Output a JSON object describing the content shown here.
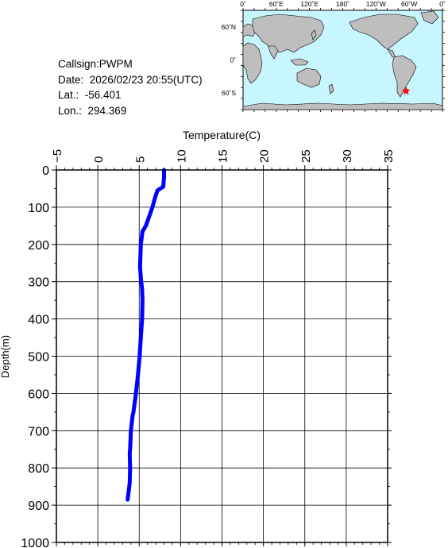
{
  "station": {
    "callsign": "Callsign:PWPM",
    "date": "Date:  2026/02/23 20:55(UTC)",
    "lat": "Lat.:  -56.401",
    "lon": "Lon.:  294.369"
  },
  "map": {
    "lon_labels": [
      "0˚",
      "60˚E",
      "120˚E",
      "180˚",
      "120˚W",
      "60˚W",
      "0˚"
    ],
    "lat_labels": [
      "60˚N",
      "0˚",
      "60˚S"
    ],
    "ocean_color": "#c8f6ff",
    "land_color": "#bebebe",
    "marker": {
      "lat": -56.401,
      "lon": 294.369,
      "color": "#ff0000",
      "icon": "star-icon"
    }
  },
  "chart_data": {
    "type": "line",
    "xlabel": "Temperature(C)",
    "ylabel": "Depth(m)",
    "xlim": [
      -5,
      35
    ],
    "ylim": [
      0,
      1000
    ],
    "y_inverted": true,
    "x_axis_position": "top",
    "x_ticks": [
      -5,
      0,
      5,
      10,
      15,
      20,
      25,
      30,
      35
    ],
    "y_ticks": [
      0,
      100,
      200,
      300,
      400,
      500,
      600,
      700,
      800,
      900,
      1000
    ],
    "grid": true,
    "series": [
      {
        "color": "#0000ff",
        "depth": [
          0,
          20,
          45,
          55,
          75,
          100,
          125,
          150,
          165,
          200,
          230,
          260,
          290,
          320,
          350,
          400,
          450,
          500,
          550,
          600,
          650,
          660,
          700,
          750,
          760,
          800,
          840,
          885
        ],
        "temperature": [
          8.0,
          8.0,
          7.9,
          7.2,
          6.9,
          6.6,
          6.2,
          5.8,
          5.4,
          5.2,
          5.15,
          5.1,
          5.2,
          5.35,
          5.4,
          5.35,
          5.2,
          5.05,
          4.85,
          4.6,
          4.3,
          4.2,
          4.0,
          3.9,
          3.85,
          3.9,
          3.85,
          3.6
        ]
      }
    ]
  }
}
